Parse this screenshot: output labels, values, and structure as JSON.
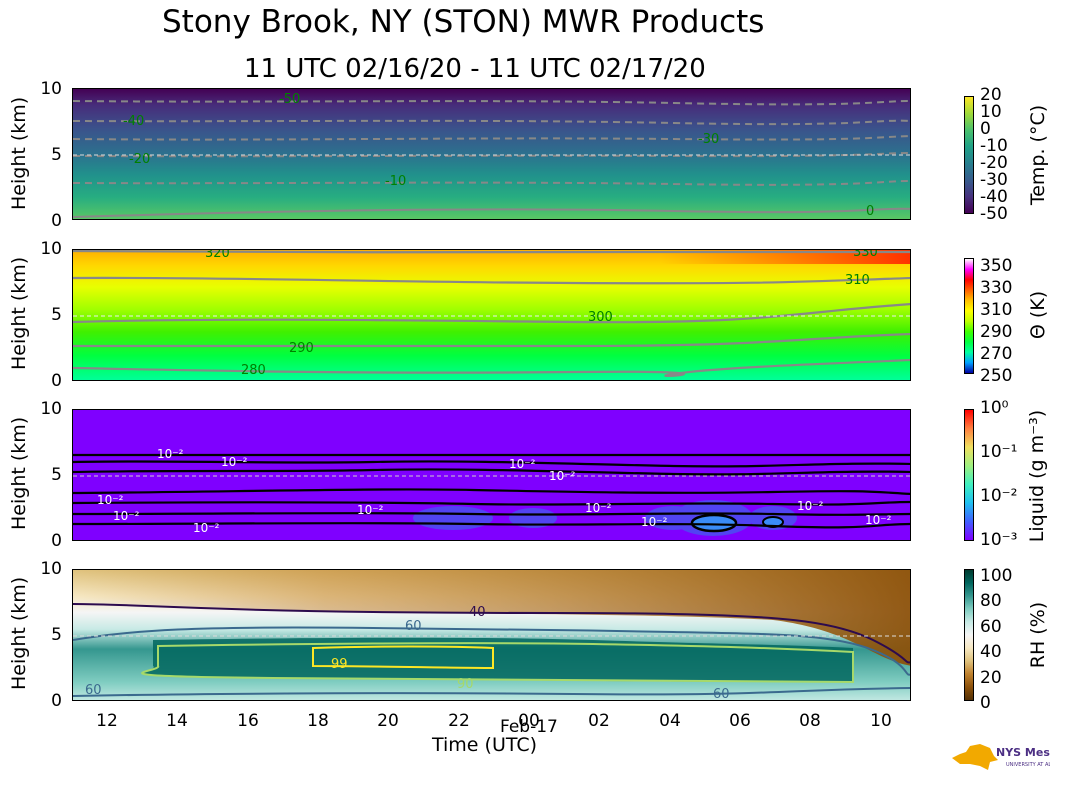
{
  "title": "Stony Brook, NY (STON) MWR Products",
  "subtitle": "11 UTC 02/16/20 - 11 UTC 02/17/20",
  "x_label": "Time (UTC)",
  "date_label": "Feb-17",
  "x_ticks": [
    "12",
    "14",
    "16",
    "18",
    "20",
    "22",
    "00",
    "02",
    "04",
    "06",
    "08",
    "10"
  ],
  "logo_text": "NYS Mesonet",
  "chart_data": [
    {
      "type": "heatmap",
      "ylabel": "Height (km)",
      "ylim": [
        0,
        10
      ],
      "yticks": [
        "0",
        "5",
        "10"
      ],
      "colorbar_label": "Temp. (°C)",
      "colorbar_ticks": [
        "20",
        "10",
        "0",
        "-10",
        "-20",
        "-30",
        "-40",
        "-50"
      ],
      "colormap": [
        "#440154",
        "#46327e",
        "#365c8d",
        "#277f8e",
        "#1fa187",
        "#4ac16d",
        "#a0da39",
        "#fde725"
      ],
      "contour_labels": [
        "-50",
        "-40",
        "-30",
        "-20",
        "-10",
        "0"
      ],
      "contours_dashed": true
    },
    {
      "type": "heatmap",
      "ylabel": "Height (km)",
      "ylim": [
        0,
        10
      ],
      "yticks": [
        "0",
        "5",
        "10"
      ],
      "colorbar_label": "Θ (K)",
      "colorbar_ticks": [
        "350",
        "330",
        "310",
        "290",
        "270",
        "250"
      ],
      "colormap": [
        "#00ffa0",
        "#00ff40",
        "#40ff00",
        "#c0ff00",
        "#ffff00",
        "#ffc000",
        "#ff6000",
        "#ff0000",
        "#ff00ff"
      ],
      "contour_labels": [
        "280",
        "290",
        "300",
        "310",
        "320",
        "330"
      ]
    },
    {
      "type": "heatmap",
      "ylabel": "Height (km)",
      "ylim": [
        0,
        10
      ],
      "yticks": [
        "0",
        "5",
        "10"
      ],
      "colorbar_label": "Liquid (g m⁻³)",
      "colorbar_ticks": [
        "10⁰",
        "10⁻¹",
        "10⁻²",
        "10⁻³"
      ],
      "colormap": [
        "#7f00ff",
        "#4060ff",
        "#00c0e0",
        "#40f0b0",
        "#b0f070",
        "#ffb040",
        "#ff0000"
      ],
      "contour_labels": [
        "10⁻²"
      ]
    },
    {
      "type": "heatmap",
      "ylabel": "Height (km)",
      "ylim": [
        0,
        10
      ],
      "yticks": [
        "0",
        "5",
        "10"
      ],
      "colorbar_label": "RH (%)",
      "colorbar_ticks": [
        "100",
        "80",
        "60",
        "40",
        "20",
        "0"
      ],
      "colormap": [
        "#543005",
        "#8c510a",
        "#bf812d",
        "#dfc27d",
        "#f6e8c3",
        "#f5f5f5",
        "#c7eae5",
        "#80cdc1",
        "#35978f",
        "#01665e",
        "#003c30"
      ],
      "contour_labels": [
        "40",
        "60",
        "90",
        "99"
      ]
    }
  ]
}
